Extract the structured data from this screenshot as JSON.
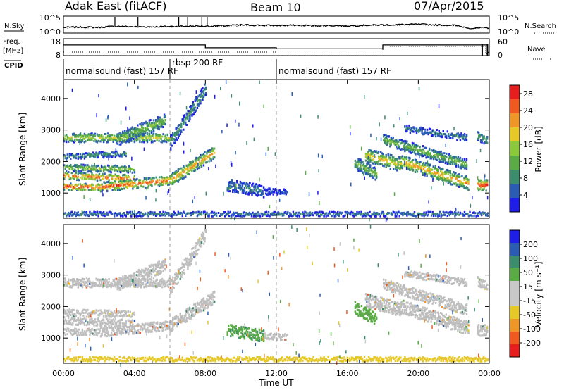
{
  "header": {
    "site": "Adak East (fitACF)",
    "beam": "Beam 10",
    "date": "07/Apr/2015"
  },
  "colors": {
    "power": [
      "#1e1ee6",
      "#2a5cb4",
      "#3c8c6e",
      "#5aaa46",
      "#8cc83c",
      "#e6c828",
      "#f09628",
      "#f05a1e",
      "#e61e1e"
    ],
    "velocity": [
      "#e61e1e",
      "#f05a1e",
      "#f09628",
      "#e6c828",
      "#c8c8c8",
      "#c8c8c8",
      "#5aaa46",
      "#3c8c6e",
      "#2a5cb4",
      "#1e1ee6"
    ],
    "ground_scatter": "#bebebe"
  },
  "chart_data": [
    {
      "type": "line",
      "name": "nsky-panel",
      "left_label": "N.Sky",
      "right_label": "N.Search",
      "left_ticks": [
        "10^5",
        "10^0"
      ],
      "right_ticks": [
        "10^5",
        "10^0"
      ],
      "x": [
        0,
        1,
        2,
        3,
        4,
        5,
        6,
        7,
        8,
        9,
        10,
        11,
        12,
        13,
        14,
        15,
        16,
        17,
        18,
        19,
        20,
        21,
        22,
        23,
        24
      ],
      "series": [
        {
          "values": [
            1.6,
            1.7,
            1.6,
            2.0,
            1.8,
            1.8,
            1.9,
            2.0,
            2.0,
            2.1,
            2.4,
            2.3,
            2.2,
            2.3,
            2.2,
            2.2,
            2.1,
            2.3,
            2.4,
            2.5,
            2.6,
            2.4,
            2.3,
            1.3,
            1.5
          ]
        },
        {
          "style": "dotted",
          "values": [
            1.5,
            1.6,
            1.5,
            1.8,
            1.7,
            1.7,
            1.8,
            1.9,
            1.9,
            2.0,
            2.2,
            2.2,
            2.1,
            2.2,
            2.1,
            2.1,
            2.0,
            2.2,
            2.3,
            2.4,
            2.5,
            2.3,
            2.2,
            1.2,
            1.4
          ]
        }
      ],
      "spikes": [
        2.9,
        4.2,
        6.5,
        7.0,
        7.8,
        8.1
      ]
    },
    {
      "type": "line",
      "name": "freq-panel",
      "left_label": "Freq.",
      "left_unit": "[MHz]",
      "left_ticks": [
        "18",
        "8"
      ],
      "right_label": "Nave",
      "right_ticks": [
        "60",
        "0"
      ],
      "series": [
        {
          "name": "Freq.",
          "x": [
            0,
            8.0,
            8.0,
            12.0,
            12.0,
            18.0,
            18.0,
            23.9,
            23.9,
            24
          ],
          "values": [
            14.1,
            14.1,
            11.4,
            11.4,
            10.4,
            10.4,
            14.1,
            14.1,
            7.0,
            7.0
          ]
        },
        {
          "name": "Nave",
          "style": "dotted",
          "x": [
            0,
            8.0,
            8.0,
            12.0,
            12.0,
            18.0,
            18.0,
            23.8,
            23.8,
            24
          ],
          "values": [
            11,
            11,
            11,
            11,
            15,
            15,
            33,
            33,
            5,
            12
          ]
        }
      ],
      "markers_x": [
        23.6,
        23.9
      ]
    },
    {
      "type": "table",
      "name": "cpid-panel",
      "label": "CPID",
      "segments": [
        {
          "start": 0,
          "end": 6.0,
          "text": "normalsound (fast) 157 RF"
        },
        {
          "start": 6.0,
          "end": 12.0,
          "text": "rbsp 200 RF"
        },
        {
          "start": 12.0,
          "end": 24,
          "text": "normalsound (fast) 157 RF"
        }
      ]
    },
    {
      "type": "heatmap",
      "name": "power-panel",
      "ylabel": "Slant Range [km]",
      "yticks": [
        1000,
        2000,
        3000,
        4000
      ],
      "ylim": [
        200,
        4600
      ],
      "xlim": [
        0,
        24
      ],
      "colorbar_label": "Power [dB]",
      "colorbar_ticks": [
        4,
        8,
        12,
        16,
        20,
        24,
        28
      ],
      "colorbar_range": [
        0,
        30
      ],
      "bands": [
        {
          "t0": 0.0,
          "t1": 6.0,
          "r0": 2750,
          "r1": 2750,
          "w": 140,
          "peak": 18
        },
        {
          "t0": 3.0,
          "t1": 5.7,
          "r0": 2700,
          "r1": 3300,
          "w": 200,
          "peak": 14
        },
        {
          "t0": 0.0,
          "t1": 3.5,
          "r0": 2150,
          "r1": 2250,
          "w": 90,
          "peak": 10
        },
        {
          "t0": 0.0,
          "t1": 4.0,
          "r0": 1800,
          "r1": 1750,
          "w": 110,
          "peak": 16
        },
        {
          "t0": 0.0,
          "t1": 4.0,
          "r0": 1550,
          "r1": 1450,
          "w": 120,
          "peak": 26
        },
        {
          "t0": 0.0,
          "t1": 2.0,
          "r0": 1200,
          "r1": 1180,
          "w": 110,
          "peak": 30
        },
        {
          "t0": 2.0,
          "t1": 6.0,
          "r0": 1180,
          "r1": 1400,
          "w": 150,
          "peak": 26
        },
        {
          "t0": 6.0,
          "t1": 8.5,
          "r0": 1400,
          "r1": 2300,
          "w": 200,
          "peak": 22
        },
        {
          "t0": 6.0,
          "t1": 8.0,
          "r0": 2600,
          "r1": 4300,
          "w": 220,
          "peak": 10
        },
        {
          "t0": 9.2,
          "t1": 11.3,
          "r0": 1250,
          "r1": 1050,
          "w": 190,
          "peak": 8
        },
        {
          "t0": 11.3,
          "t1": 12.6,
          "r0": 1050,
          "r1": 1020,
          "w": 100,
          "peak": 4
        },
        {
          "t0": 16.4,
          "t1": 17.6,
          "r0": 1950,
          "r1": 1600,
          "w": 200,
          "peak": 14
        },
        {
          "t0": 17.0,
          "t1": 19.0,
          "r0": 2200,
          "r1": 1900,
          "w": 220,
          "peak": 20
        },
        {
          "t0": 19.0,
          "t1": 22.8,
          "r0": 2000,
          "r1": 1300,
          "w": 210,
          "peak": 22
        },
        {
          "t0": 18.0,
          "t1": 22.7,
          "r0": 2700,
          "r1": 1900,
          "w": 170,
          "peak": 14
        },
        {
          "t0": 19.2,
          "t1": 22.7,
          "r0": 3050,
          "r1": 2750,
          "w": 110,
          "peak": 8
        },
        {
          "t0": 23.3,
          "t1": 23.85,
          "r0": 1250,
          "r1": 1250,
          "w": 180,
          "peak": 28
        },
        {
          "t0": 23.3,
          "t1": 23.85,
          "r0": 2800,
          "r1": 2650,
          "w": 140,
          "peak": 12
        },
        {
          "t0": 0.0,
          "t1": 23.9,
          "r0": 330,
          "r1": 330,
          "w": 70,
          "peak": 8
        }
      ]
    },
    {
      "type": "heatmap",
      "name": "velocity-panel",
      "ylabel": "Slant Range [km]",
      "yticks": [
        1000,
        2000,
        3000,
        4000
      ],
      "ylim": [
        200,
        4600
      ],
      "xlim": [
        0,
        24
      ],
      "xlabel": "Time UT",
      "xticks": [
        "00:00",
        "04:00",
        "08:00",
        "12:00",
        "16:00",
        "20:00",
        "00:00"
      ],
      "xtick_values": [
        0,
        4,
        8,
        12,
        16,
        20,
        24
      ],
      "colorbar_label": "Velocity [m s⁻¹]",
      "colorbar_ticks": [
        -200,
        -100,
        -50,
        -15,
        15,
        50,
        100,
        200
      ],
      "bands": [
        {
          "t0": 0.0,
          "t1": 6.0,
          "r0": 2750,
          "r1": 2750,
          "w": 140,
          "v": 0
        },
        {
          "t0": 3.0,
          "t1": 5.7,
          "r0": 2700,
          "r1": 3300,
          "w": 200,
          "v": 0
        },
        {
          "t0": 0.0,
          "t1": 4.0,
          "r0": 1800,
          "r1": 1750,
          "w": 110,
          "v": 0
        },
        {
          "t0": 0.0,
          "t1": 4.0,
          "r0": 1550,
          "r1": 1450,
          "w": 120,
          "v": 0
        },
        {
          "t0": 0.0,
          "t1": 2.0,
          "r0": 1200,
          "r1": 1180,
          "w": 110,
          "v": 0
        },
        {
          "t0": 2.0,
          "t1": 6.0,
          "r0": 1180,
          "r1": 1400,
          "w": 150,
          "v": 0
        },
        {
          "t0": 6.0,
          "t1": 8.5,
          "r0": 1400,
          "r1": 2300,
          "w": 200,
          "v": 0
        },
        {
          "t0": 6.0,
          "t1": 8.0,
          "r0": 2600,
          "r1": 4300,
          "w": 220,
          "v": 0
        },
        {
          "t0": 9.2,
          "t1": 11.3,
          "r0": 1250,
          "r1": 1050,
          "w": 190,
          "v": 45
        },
        {
          "t0": 11.3,
          "t1": 12.6,
          "r0": 1050,
          "r1": 1020,
          "w": 100,
          "v": 0
        },
        {
          "t0": 16.4,
          "t1": 17.6,
          "r0": 1950,
          "r1": 1600,
          "w": 200,
          "v": 40
        },
        {
          "t0": 17.0,
          "t1": 19.0,
          "r0": 2200,
          "r1": 1900,
          "w": 220,
          "v": 0
        },
        {
          "t0": 19.0,
          "t1": 22.8,
          "r0": 2000,
          "r1": 1300,
          "w": 210,
          "v": 0
        },
        {
          "t0": 18.0,
          "t1": 22.7,
          "r0": 2700,
          "r1": 1900,
          "w": 170,
          "v": 0
        },
        {
          "t0": 19.2,
          "t1": 22.7,
          "r0": 3050,
          "r1": 2750,
          "w": 110,
          "v": 0
        },
        {
          "t0": 23.3,
          "t1": 23.85,
          "r0": 1250,
          "r1": 1250,
          "w": 180,
          "v": 0
        },
        {
          "t0": 23.3,
          "t1": 23.85,
          "r0": 2800,
          "r1": 2650,
          "w": 140,
          "v": 0
        },
        {
          "t0": 0.0,
          "t1": 23.9,
          "r0": 330,
          "r1": 330,
          "w": 70,
          "v": -40
        }
      ]
    }
  ]
}
